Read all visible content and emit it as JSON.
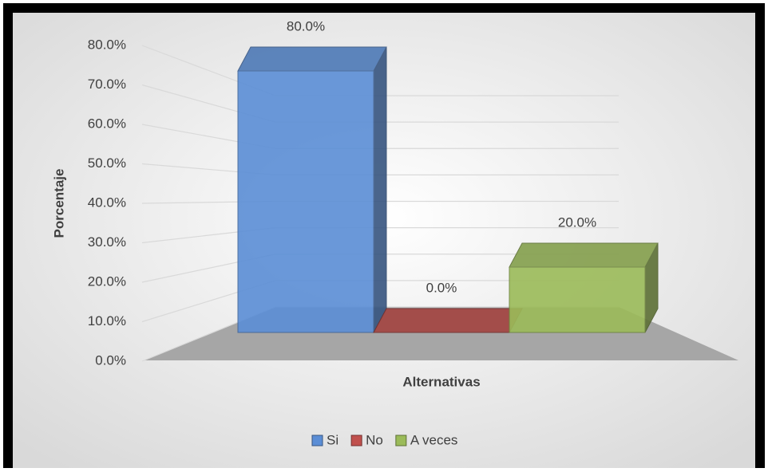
{
  "chart_data": {
    "type": "bar3d",
    "categories": [
      "Si",
      "No",
      "A veces"
    ],
    "values": [
      80,
      0,
      20
    ],
    "value_labels": [
      "80.0%",
      "0.0%",
      "20.0%"
    ],
    "colors": [
      "#5b8ed6",
      "#c0504d",
      "#9bbb59"
    ],
    "ylabel": "Porcentaje",
    "xlabel": "Alternativas",
    "ylim": [
      0,
      80
    ],
    "yticks": [
      {
        "value": 0,
        "label": "0.0%"
      },
      {
        "value": 10,
        "label": "10.0%"
      },
      {
        "value": 20,
        "label": "20.0%"
      },
      {
        "value": 30,
        "label": "30.0%"
      },
      {
        "value": 40,
        "label": "40.0%"
      },
      {
        "value": 50,
        "label": "50.0%"
      },
      {
        "value": 60,
        "label": "60.0%"
      },
      {
        "value": 70,
        "label": "70.0%"
      },
      {
        "value": 80,
        "label": "80.0%"
      }
    ],
    "grid": true,
    "legend": "bottom"
  }
}
